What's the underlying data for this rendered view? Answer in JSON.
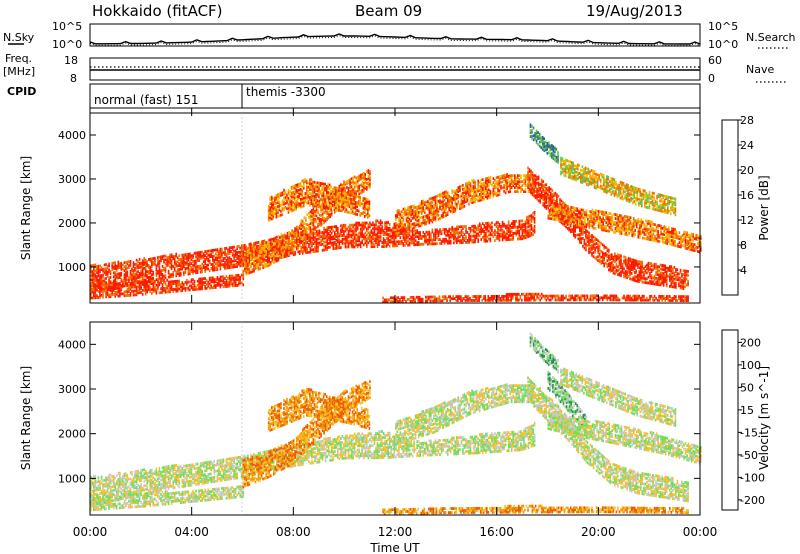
{
  "header": {
    "station": "Hokkaido (fitACF)",
    "beam": "Beam 09",
    "date": "19/Aug/2013"
  },
  "noise_panel": {
    "left_label": "N.Sky",
    "right_label": "N.Search",
    "left_ticks": [
      "10^5",
      "10^0"
    ],
    "right_ticks": [
      "10^5",
      "10^0"
    ]
  },
  "freq_panel": {
    "left_label_top": "Freq.",
    "left_label_units": "[MHz]",
    "left_ticks": [
      "18",
      "8"
    ],
    "right_label": "Nave",
    "right_ticks": [
      "60",
      "0"
    ]
  },
  "cpid_panel": {
    "label": "CPID",
    "programs": [
      "normal (fast) 151",
      "themis -3300"
    ]
  },
  "chart_data": [
    {
      "type": "heatmap",
      "quantity": "Power",
      "ylabel": "Slant Range [km]",
      "xlabel": "",
      "colorbar_label": "Power [dB]",
      "colorbar_ticks": [
        "4",
        "8",
        "12",
        "16",
        "20",
        "24",
        "28"
      ],
      "x_ticks": [
        "00:00",
        "04:00",
        "08:00",
        "12:00",
        "16:00",
        "20:00",
        "00:00"
      ],
      "y_ticks": [
        "1000",
        "2000",
        "3000",
        "4000"
      ],
      "ylim": [
        180,
        4500
      ],
      "xlim_hours": [
        0,
        24
      ],
      "colors": [
        "#0000ff",
        "#2f5aa6",
        "#3a8a5a",
        "#5fc94a",
        "#f4b400",
        "#f07000",
        "#ff1a00"
      ],
      "bands": [
        {
          "t": [
            0,
            3,
            6,
            8,
            10,
            11.5,
            13,
            15,
            17,
            17.5
          ],
          "r": [
            700,
            1000,
            1250,
            1500,
            1700,
            1750,
            1650,
            1750,
            1850,
            2000
          ],
          "w": [
            320,
            250,
            230,
            230,
            260,
            300,
            150,
            200,
            220,
            260
          ],
          "level": 6
        },
        {
          "t": [
            0,
            2,
            4,
            6
          ],
          "r": [
            450,
            500,
            600,
            700
          ],
          "w": [
            170,
            140,
            130,
            120
          ],
          "level": 6
        },
        {
          "t": [
            6,
            7,
            8,
            9,
            10,
            11
          ],
          "r": [
            1100,
            1300,
            1600,
            2200,
            2700,
            3000
          ],
          "w": [
            300,
            280,
            260,
            300,
            250,
            200
          ],
          "level": 5
        },
        {
          "t": [
            7,
            8.5,
            10,
            11
          ],
          "r": [
            2300,
            2700,
            2500,
            2300
          ],
          "w": [
            250,
            300,
            250,
            200
          ],
          "level": 5
        },
        {
          "t": [
            12,
            13.5,
            15,
            16.5,
            17.5
          ],
          "r": [
            2000,
            2300,
            2700,
            2900,
            2900
          ],
          "w": [
            250,
            280,
            250,
            200,
            200
          ],
          "level": 5
        },
        {
          "t": [
            17.2,
            18,
            18.8,
            19.5,
            20.5,
            21.5,
            23.5
          ],
          "r": [
            3000,
            2550,
            2100,
            1600,
            1100,
            900,
            700
          ],
          "w": [
            260,
            280,
            260,
            240,
            240,
            240,
            220
          ],
          "level": 6
        },
        {
          "t": [
            18,
            19.5,
            21,
            22.5,
            24
          ],
          "r": [
            2300,
            2100,
            1950,
            1750,
            1500
          ],
          "w": [
            200,
            200,
            220,
            200,
            180
          ],
          "level": 5
        },
        {
          "t": [
            18.5,
            20,
            21.5,
            23
          ],
          "r": [
            3300,
            2950,
            2600,
            2350
          ],
          "w": [
            200,
            200,
            200,
            180
          ],
          "level": 4
        },
        {
          "t": [
            11.5,
            14,
            17,
            20,
            23.5
          ],
          "r": [
            250,
            280,
            300,
            300,
            280
          ],
          "w": [
            60,
            60,
            70,
            60,
            60
          ],
          "level": 6
        },
        {
          "t": [
            17.3,
            17.8,
            18.4
          ],
          "r": [
            4100,
            3800,
            3500
          ],
          "w": [
            150,
            150,
            150
          ],
          "level": 2
        }
      ]
    },
    {
      "type": "heatmap",
      "quantity": "Velocity",
      "ylabel": "Slant Range [km]",
      "xlabel": "Time UT",
      "colorbar_label": "Velocity [m s^-1]",
      "colorbar_ticks": [
        "200",
        "100",
        "50",
        "15",
        "-15",
        "-50",
        "-100",
        "-200"
      ],
      "x_ticks": [
        "00:00",
        "04:00",
        "08:00",
        "12:00",
        "16:00",
        "20:00",
        "00:00"
      ],
      "y_ticks": [
        "1000",
        "2000",
        "3000",
        "4000"
      ],
      "ylim": [
        180,
        4500
      ],
      "xlim_hours": [
        0,
        24
      ],
      "colors": [
        "#e80000",
        "#f05a00",
        "#f09a00",
        "#f5c030",
        "#c8c8c4",
        "#6ee05a",
        "#2a8a5a",
        "#2a45b0"
      ],
      "bands": [
        {
          "t": [
            0,
            3,
            6,
            8,
            10,
            11.5,
            13,
            15,
            17,
            17.5
          ],
          "r": [
            700,
            1000,
            1250,
            1500,
            1700,
            1750,
            1650,
            1750,
            1850,
            2000
          ],
          "w": [
            320,
            250,
            230,
            230,
            260,
            300,
            150,
            200,
            220,
            260
          ],
          "level": 4
        },
        {
          "t": [
            0,
            2,
            4,
            6
          ],
          "r": [
            450,
            500,
            600,
            700
          ],
          "w": [
            170,
            140,
            130,
            120
          ],
          "level": 4
        },
        {
          "t": [
            6,
            7,
            8,
            9,
            10,
            11
          ],
          "r": [
            1100,
            1300,
            1600,
            2200,
            2700,
            3000
          ],
          "w": [
            300,
            280,
            260,
            300,
            250,
            200
          ],
          "level": 2
        },
        {
          "t": [
            7,
            8.5,
            10,
            11
          ],
          "r": [
            2300,
            2700,
            2500,
            2300
          ],
          "w": [
            250,
            300,
            250,
            200
          ],
          "level": 2
        },
        {
          "t": [
            12,
            13.5,
            15,
            16.5,
            17.5
          ],
          "r": [
            2000,
            2300,
            2700,
            2900,
            2900
          ],
          "w": [
            250,
            280,
            250,
            200,
            200
          ],
          "level": 4
        },
        {
          "t": [
            17.2,
            18,
            18.8,
            19.5,
            20.5,
            21.5,
            23.5
          ],
          "r": [
            3000,
            2550,
            2100,
            1600,
            1100,
            900,
            700
          ],
          "w": [
            260,
            280,
            260,
            240,
            240,
            240,
            220
          ],
          "level": 4
        },
        {
          "t": [
            18,
            18.8,
            19.5
          ],
          "r": [
            3200,
            2700,
            2200
          ],
          "w": [
            200,
            200,
            200
          ],
          "level": 5
        },
        {
          "t": [
            18,
            19.5,
            21,
            22.5,
            24
          ],
          "r": [
            2300,
            2100,
            1950,
            1750,
            1500
          ],
          "w": [
            200,
            200,
            220,
            200,
            180
          ],
          "level": 4
        },
        {
          "t": [
            18.5,
            20,
            21.5,
            23
          ],
          "r": [
            3300,
            2950,
            2600,
            2350
          ],
          "w": [
            200,
            200,
            200,
            180
          ],
          "level": 4
        },
        {
          "t": [
            11.5,
            14,
            17,
            20,
            23.5
          ],
          "r": [
            250,
            280,
            300,
            300,
            280
          ],
          "w": [
            60,
            60,
            70,
            60,
            60
          ],
          "level": 2
        },
        {
          "t": [
            17.3,
            17.8,
            18.4
          ],
          "r": [
            4100,
            3800,
            3500
          ],
          "w": [
            150,
            150,
            150
          ],
          "level": 5
        }
      ]
    }
  ]
}
